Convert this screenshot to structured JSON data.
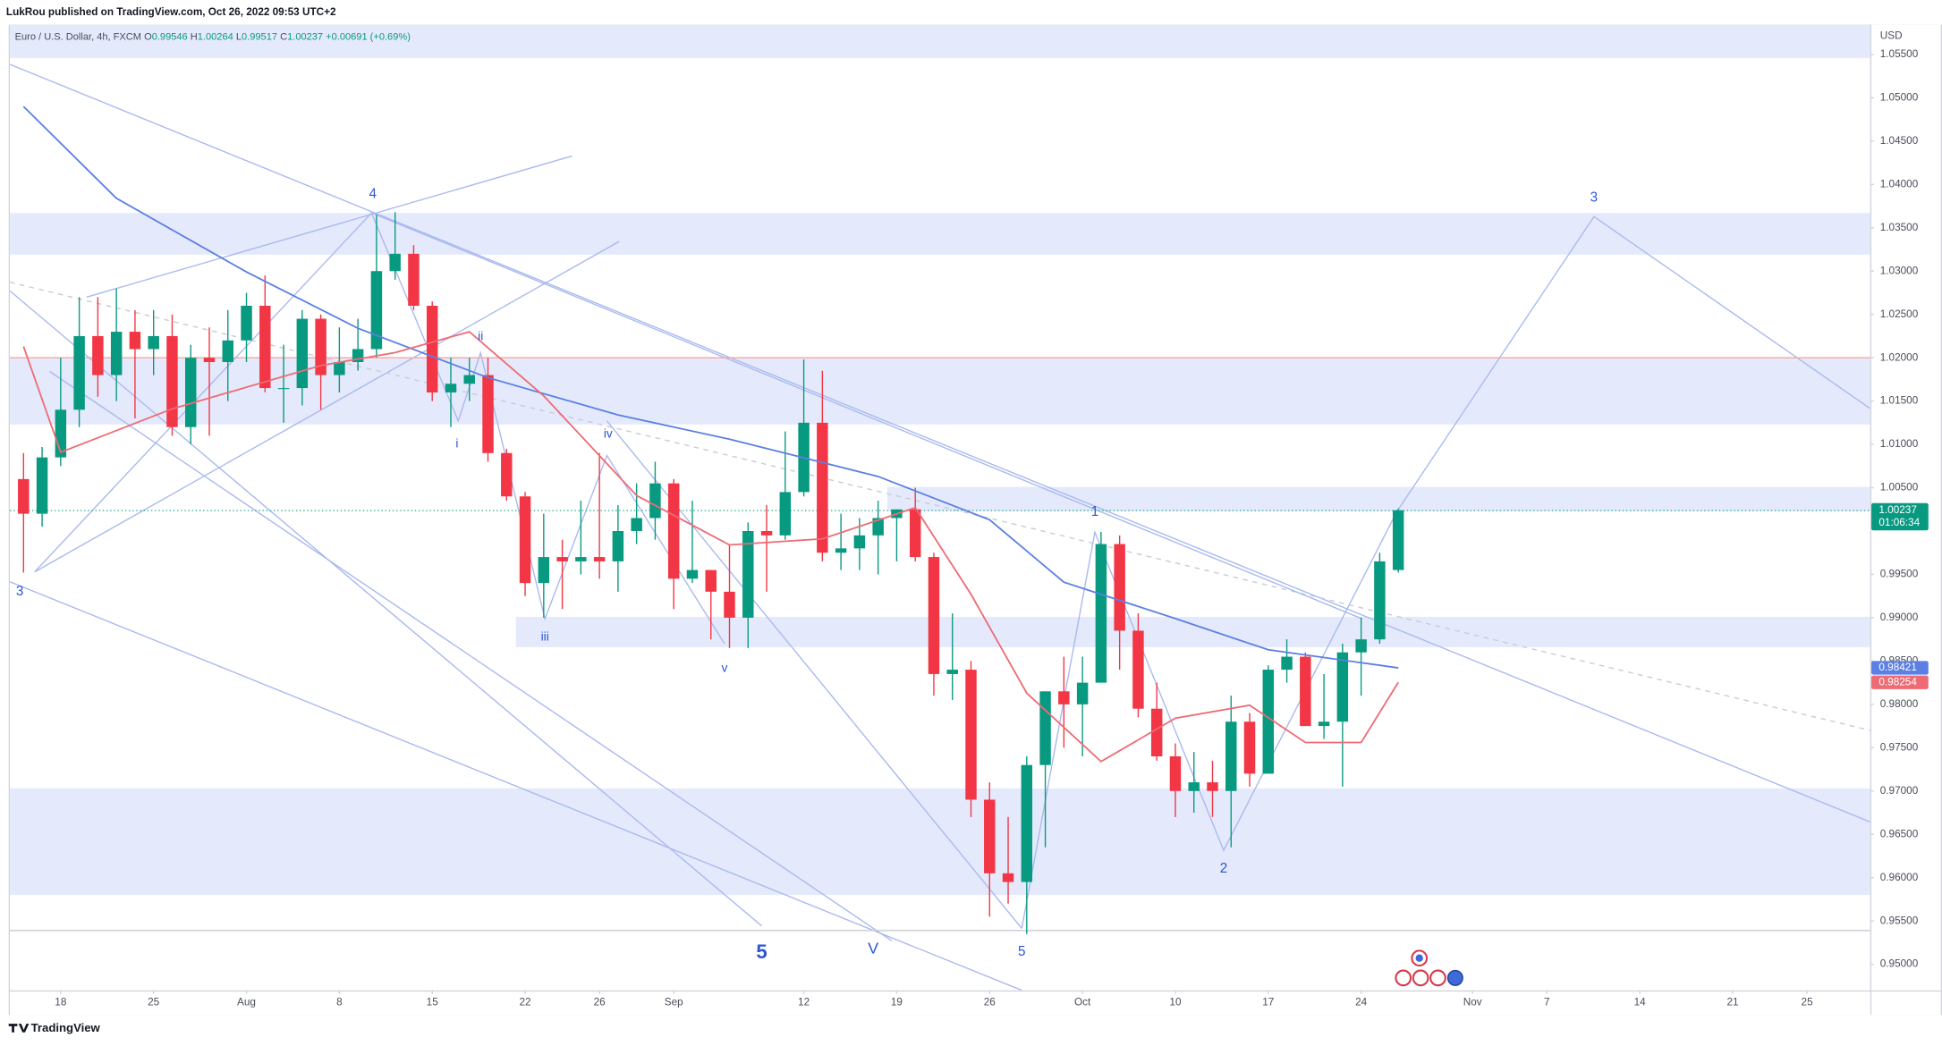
{
  "header": {
    "publisher": "LukRou published on TradingView.com, Oct 26, 2022 09:53 UTC+2",
    "brand": "TradingView"
  },
  "chart_data": {
    "type": "candlestick",
    "symbol": "Euro / U.S. Dollar, 4h, FXCM",
    "legend": [
      {
        "label": "O",
        "value": 0.99546
      },
      {
        "label": "H",
        "value": 1.00264
      },
      {
        "label": "L",
        "value": 0.99517
      },
      {
        "label": "C",
        "value": 1.00237
      }
    ],
    "change": "+0.00691 (+0.69%)",
    "countdown": "01:06:34",
    "currency": "USD",
    "up_color": "#089981",
    "down_color": "#f23645",
    "x": [
      "2022-07-14",
      "2022-07-15",
      "2022-07-18",
      "2022-07-19",
      "2022-07-20",
      "2022-07-21",
      "2022-07-22",
      "2022-07-25",
      "2022-07-26",
      "2022-07-27",
      "2022-07-28",
      "2022-07-29",
      "2022-08-01",
      "2022-08-02",
      "2022-08-03",
      "2022-08-04",
      "2022-08-05",
      "2022-08-08",
      "2022-08-09",
      "2022-08-10",
      "2022-08-11",
      "2022-08-12",
      "2022-08-15",
      "2022-08-16",
      "2022-08-17",
      "2022-08-18",
      "2022-08-19",
      "2022-08-22",
      "2022-08-23",
      "2022-08-24",
      "2022-08-25",
      "2022-08-26",
      "2022-08-29",
      "2022-08-30",
      "2022-08-31",
      "2022-09-01",
      "2022-09-02",
      "2022-09-05",
      "2022-09-06",
      "2022-09-07",
      "2022-09-08",
      "2022-09-09",
      "2022-09-12",
      "2022-09-13",
      "2022-09-14",
      "2022-09-15",
      "2022-09-16",
      "2022-09-19",
      "2022-09-20",
      "2022-09-21",
      "2022-09-22",
      "2022-09-23",
      "2022-09-26",
      "2022-09-27",
      "2022-09-28",
      "2022-09-29",
      "2022-09-30",
      "2022-10-03",
      "2022-10-04",
      "2022-10-05",
      "2022-10-06",
      "2022-10-07",
      "2022-10-10",
      "2022-10-11",
      "2022-10-12",
      "2022-10-13",
      "2022-10-14",
      "2022-10-17",
      "2022-10-18",
      "2022-10-19",
      "2022-10-20",
      "2022-10-21",
      "2022-10-24",
      "2022-10-25",
      "2022-10-26"
    ],
    "open": [
      1.006,
      1.002,
      1.0085,
      1.014,
      1.0225,
      1.018,
      1.023,
      1.021,
      1.0225,
      1.012,
      1.02,
      1.0195,
      1.022,
      1.026,
      1.0165,
      1.0165,
      1.0245,
      1.018,
      1.0195,
      1.021,
      1.03,
      1.032,
      1.026,
      1.016,
      1.017,
      1.018,
      1.009,
      1.004,
      0.994,
      0.997,
      0.9965,
      0.997,
      0.9965,
      1.0,
      1.0015,
      1.0055,
      0.9945,
      0.9955,
      0.993,
      0.99,
      1.0,
      0.9995,
      1.0045,
      1.0125,
      0.9975,
      0.998,
      0.9995,
      1.0015,
      1.0025,
      0.997,
      0.9835,
      0.984,
      0.969,
      0.9605,
      0.9595,
      0.973,
      0.9815,
      0.98,
      0.9825,
      0.9985,
      0.9885,
      0.9795,
      0.974,
      0.97,
      0.971,
      0.97,
      0.978,
      0.972,
      0.984,
      0.9855,
      0.9775,
      0.978,
      0.986,
      0.9875,
      0.9955
    ],
    "high": [
      1.009,
      1.0097,
      1.02,
      1.027,
      1.027,
      1.028,
      1.0255,
      1.0255,
      1.025,
      1.0215,
      1.0235,
      1.0255,
      1.0275,
      1.0295,
      1.0215,
      1.0255,
      1.025,
      1.0235,
      1.0245,
      1.0365,
      1.0368,
      1.033,
      1.0265,
      1.02,
      1.02,
      1.02,
      1.0095,
      1.0045,
      1.002,
      0.999,
      1.0035,
      1.009,
      1.003,
      1.0055,
      1.008,
      1.006,
      1.0035,
      0.9955,
      0.9985,
      1.001,
      1.003,
      1.0115,
      1.0198,
      1.0185,
      1.002,
      1.0015,
      1.0035,
      1.0025,
      1.005,
      0.9975,
      0.9905,
      0.985,
      0.971,
      0.967,
      0.974,
      0.9815,
      0.9855,
      0.9855,
      0.9999,
      0.9995,
      0.9905,
      0.9825,
      0.9755,
      0.9745,
      0.9735,
      0.981,
      0.979,
      0.9845,
      0.9875,
      0.986,
      0.9835,
      0.987,
      0.99,
      0.9975,
      1.0026
    ],
    "low": [
      0.9952,
      1.0005,
      1.0075,
      1.012,
      1.0155,
      1.015,
      1.013,
      1.018,
      1.011,
      1.01,
      1.011,
      1.015,
      1.0195,
      1.016,
      1.0125,
      1.0145,
      1.014,
      1.016,
      1.0185,
      1.02,
      1.029,
      1.0255,
      1.015,
      1.012,
      1.015,
      1.008,
      1.0035,
      0.9925,
      0.99,
      0.991,
      0.995,
      0.9945,
      0.993,
      0.9985,
      0.999,
      0.991,
      0.994,
      0.9875,
      0.9865,
      0.9865,
      0.993,
      0.999,
      1.004,
      0.9965,
      0.9955,
      0.9955,
      0.995,
      0.9965,
      0.9965,
      0.981,
      0.9805,
      0.967,
      0.9555,
      0.957,
      0.9535,
      0.9635,
      0.975,
      0.974,
      0.9825,
      0.984,
      0.9785,
      0.9735,
      0.967,
      0.9675,
      0.967,
      0.9635,
      0.9705,
      0.972,
      0.9825,
      0.9775,
      0.976,
      0.9705,
      0.981,
      0.987,
      0.9952
    ],
    "close": [
      1.002,
      1.0085,
      1.014,
      1.0225,
      1.018,
      1.023,
      1.021,
      1.0225,
      1.012,
      1.02,
      1.0195,
      1.022,
      1.026,
      1.0165,
      1.0165,
      1.0245,
      1.018,
      1.0195,
      1.021,
      1.03,
      1.032,
      1.026,
      1.016,
      1.017,
      1.018,
      1.009,
      1.004,
      0.994,
      0.997,
      0.9965,
      0.997,
      0.9965,
      1.0,
      1.0015,
      1.0055,
      0.9945,
      0.9955,
      0.993,
      0.99,
      1.0,
      0.9995,
      1.0045,
      1.0125,
      0.9975,
      0.998,
      0.9995,
      1.0015,
      1.0025,
      0.997,
      0.9835,
      0.984,
      0.969,
      0.9605,
      0.9595,
      0.973,
      0.9815,
      0.98,
      0.9825,
      0.9985,
      0.9885,
      0.9795,
      0.974,
      0.97,
      0.971,
      0.97,
      0.978,
      0.972,
      0.984,
      0.9855,
      0.9775,
      0.978,
      0.986,
      0.9875,
      0.9965,
      1.0024
    ],
    "moving_averages": [
      {
        "color": "#5b7fe3",
        "x": [
          "2022-07-14",
          "2022-07-21",
          "2022-08-01",
          "2022-08-09",
          "2022-08-18",
          "2022-08-29",
          "2022-09-06",
          "2022-09-16",
          "2022-09-26",
          "2022-09-30",
          "2022-10-10",
          "2022-10-17",
          "2022-10-26"
        ],
        "values": [
          1.049,
          1.0384,
          1.0299,
          1.0234,
          1.0177,
          1.0134,
          1.0106,
          1.0063,
          1.0013,
          0.9941,
          0.9899,
          0.9863,
          0.98421
        ]
      },
      {
        "color": "#ee6b73",
        "x": [
          "2022-07-14",
          "2022-07-18",
          "2022-07-26",
          "2022-08-05",
          "2022-08-11",
          "2022-08-17",
          "2022-08-23",
          "2022-08-30",
          "2022-09-06",
          "2022-09-13",
          "2022-09-20",
          "2022-09-23",
          "2022-09-28",
          "2022-10-04",
          "2022-10-10",
          "2022-10-14",
          "2022-10-19",
          "2022-10-24",
          "2022-10-26"
        ],
        "values": [
          1.0213,
          1.0091,
          1.0141,
          1.0191,
          1.0206,
          1.023,
          1.0156,
          1.0041,
          0.9984,
          0.9991,
          1.0027,
          0.9927,
          0.9813,
          0.9734,
          0.9784,
          0.9799,
          0.9756,
          0.9756,
          0.98254
        ]
      }
    ],
    "zones": [
      {
        "top": 1.0584,
        "bottom": 1.0546
      },
      {
        "top": 1.0367,
        "bottom": 1.0319
      },
      {
        "top": 1.0199,
        "bottom": 1.0123
      },
      {
        "top": 1.0051,
        "bottom": 1.0023,
        "from": "2022-09-19"
      },
      {
        "top": 0.9901,
        "bottom": 0.9866,
        "from": "2022-08-22"
      },
      {
        "top": 0.9703,
        "bottom": 0.958
      }
    ],
    "levels": [
      {
        "value": 1.02,
        "color": "#f3a3a3"
      },
      {
        "value": 0.9539,
        "color": "#c9cbd3"
      }
    ],
    "wave_labels": [
      "4",
      "3",
      "ii",
      "i",
      "iv",
      "iii",
      "v",
      "5",
      "V",
      "5",
      "1",
      "2",
      "3"
    ],
    "ylim": [
      0.947,
      1.05843
    ],
    "yticks": [
      {
        "value": 1.055,
        "label": "1.05500"
      },
      {
        "value": 1.05,
        "label": "1.05000"
      },
      {
        "value": 1.045,
        "label": "1.04500"
      },
      {
        "value": 1.04,
        "label": "1.04000"
      },
      {
        "value": 1.035,
        "label": "1.03500"
      },
      {
        "value": 1.03,
        "label": "1.03000"
      },
      {
        "value": 1.025,
        "label": "1.02500"
      },
      {
        "value": 1.02,
        "label": "1.02000"
      },
      {
        "value": 1.015,
        "label": "1.01500"
      },
      {
        "value": 1.01,
        "label": "1.01000"
      },
      {
        "value": 1.005,
        "label": "1.00500"
      },
      {
        "value": 0.995,
        "label": "0.99500"
      },
      {
        "value": 0.99,
        "label": "0.99000"
      },
      {
        "value": 0.985,
        "label": "0.98500"
      },
      {
        "value": 0.98,
        "label": "0.98000"
      },
      {
        "value": 0.975,
        "label": "0.97500"
      },
      {
        "value": 0.97,
        "label": "0.97000"
      },
      {
        "value": 0.965,
        "label": "0.96500"
      },
      {
        "value": 0.96,
        "label": "0.96000"
      },
      {
        "value": 0.955,
        "label": "0.95500"
      },
      {
        "value": 0.95,
        "label": "0.95000"
      }
    ],
    "xticks": [
      {
        "value": "2022-07-18",
        "label": "18"
      },
      {
        "value": "2022-07-25",
        "label": "25"
      },
      {
        "value": "2022-08-01",
        "label": "Aug"
      },
      {
        "value": "2022-08-08",
        "label": "8"
      },
      {
        "value": "2022-08-15",
        "label": "15"
      },
      {
        "value": "2022-08-22",
        "label": "22"
      },
      {
        "value": "2022-08-26",
        "label": "26"
      },
      {
        "value": "2022-09-01",
        "label": "Sep"
      },
      {
        "value": "2022-09-12",
        "label": "12"
      },
      {
        "value": "2022-09-19",
        "label": "19"
      },
      {
        "value": "2022-09-26",
        "label": "26"
      },
      {
        "value": "2022-10-03",
        "label": "Oct"
      },
      {
        "value": "2022-10-10",
        "label": "10"
      },
      {
        "value": "2022-10-17",
        "label": "17"
      },
      {
        "value": "2022-10-24",
        "label": "24"
      },
      {
        "value": "2022-11-01",
        "label": "Nov"
      },
      {
        "value": "2022-11-07",
        "label": "7"
      },
      {
        "value": "2022-11-14",
        "label": "14"
      },
      {
        "value": "2022-11-21",
        "label": "21"
      },
      {
        "value": "2022-11-25",
        "label": "25"
      }
    ]
  }
}
